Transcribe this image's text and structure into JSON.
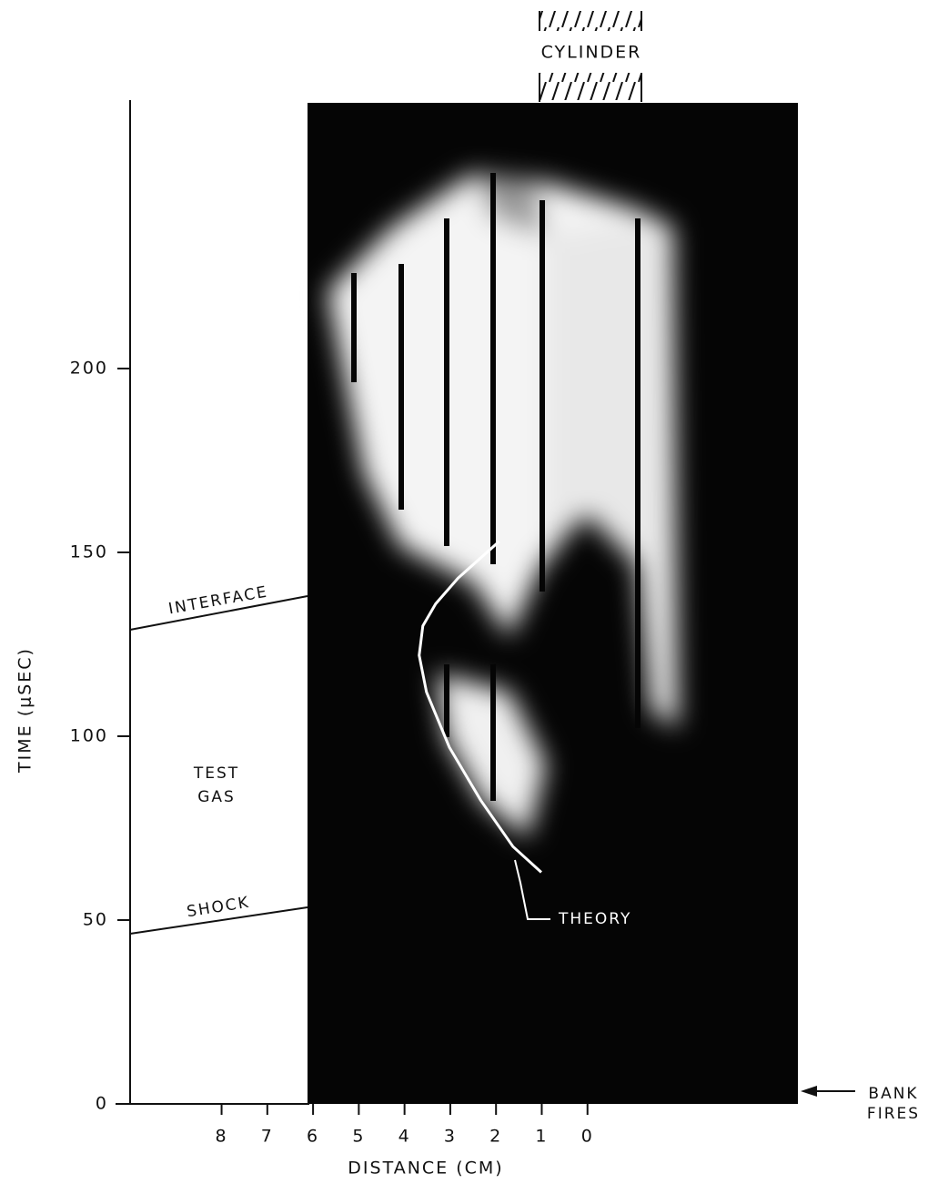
{
  "chart_data": {
    "type": "streak",
    "ylabel": "TIME (μSEC)",
    "xlabel": "DISTANCE (CM)",
    "ylim": [
      0,
      273
    ],
    "yticks": [
      0,
      50,
      100,
      150,
      200
    ],
    "xlim": [
      10,
      -4.6
    ],
    "xticks": [
      8,
      7,
      6,
      5,
      4,
      3,
      2,
      1,
      0
    ],
    "series": [
      {
        "color": "#ffffff",
        "x": [
          1.01,
          1.63,
          2.33,
          3.02,
          3.52,
          3.68,
          3.6,
          3.32,
          2.83,
          1.93
        ],
        "y": [
          63,
          70,
          82.5,
          97,
          112,
          122,
          130,
          136,
          143,
          153
        ]
      }
    ],
    "annotations": {
      "cylinder": "CYLINDER",
      "interface": "INTERFACE",
      "shock": "SHOCK",
      "test_gas": [
        "TEST",
        "GAS"
      ],
      "theory": "THEORY",
      "bank_fires": [
        "BANK",
        "FIRES"
      ]
    }
  }
}
